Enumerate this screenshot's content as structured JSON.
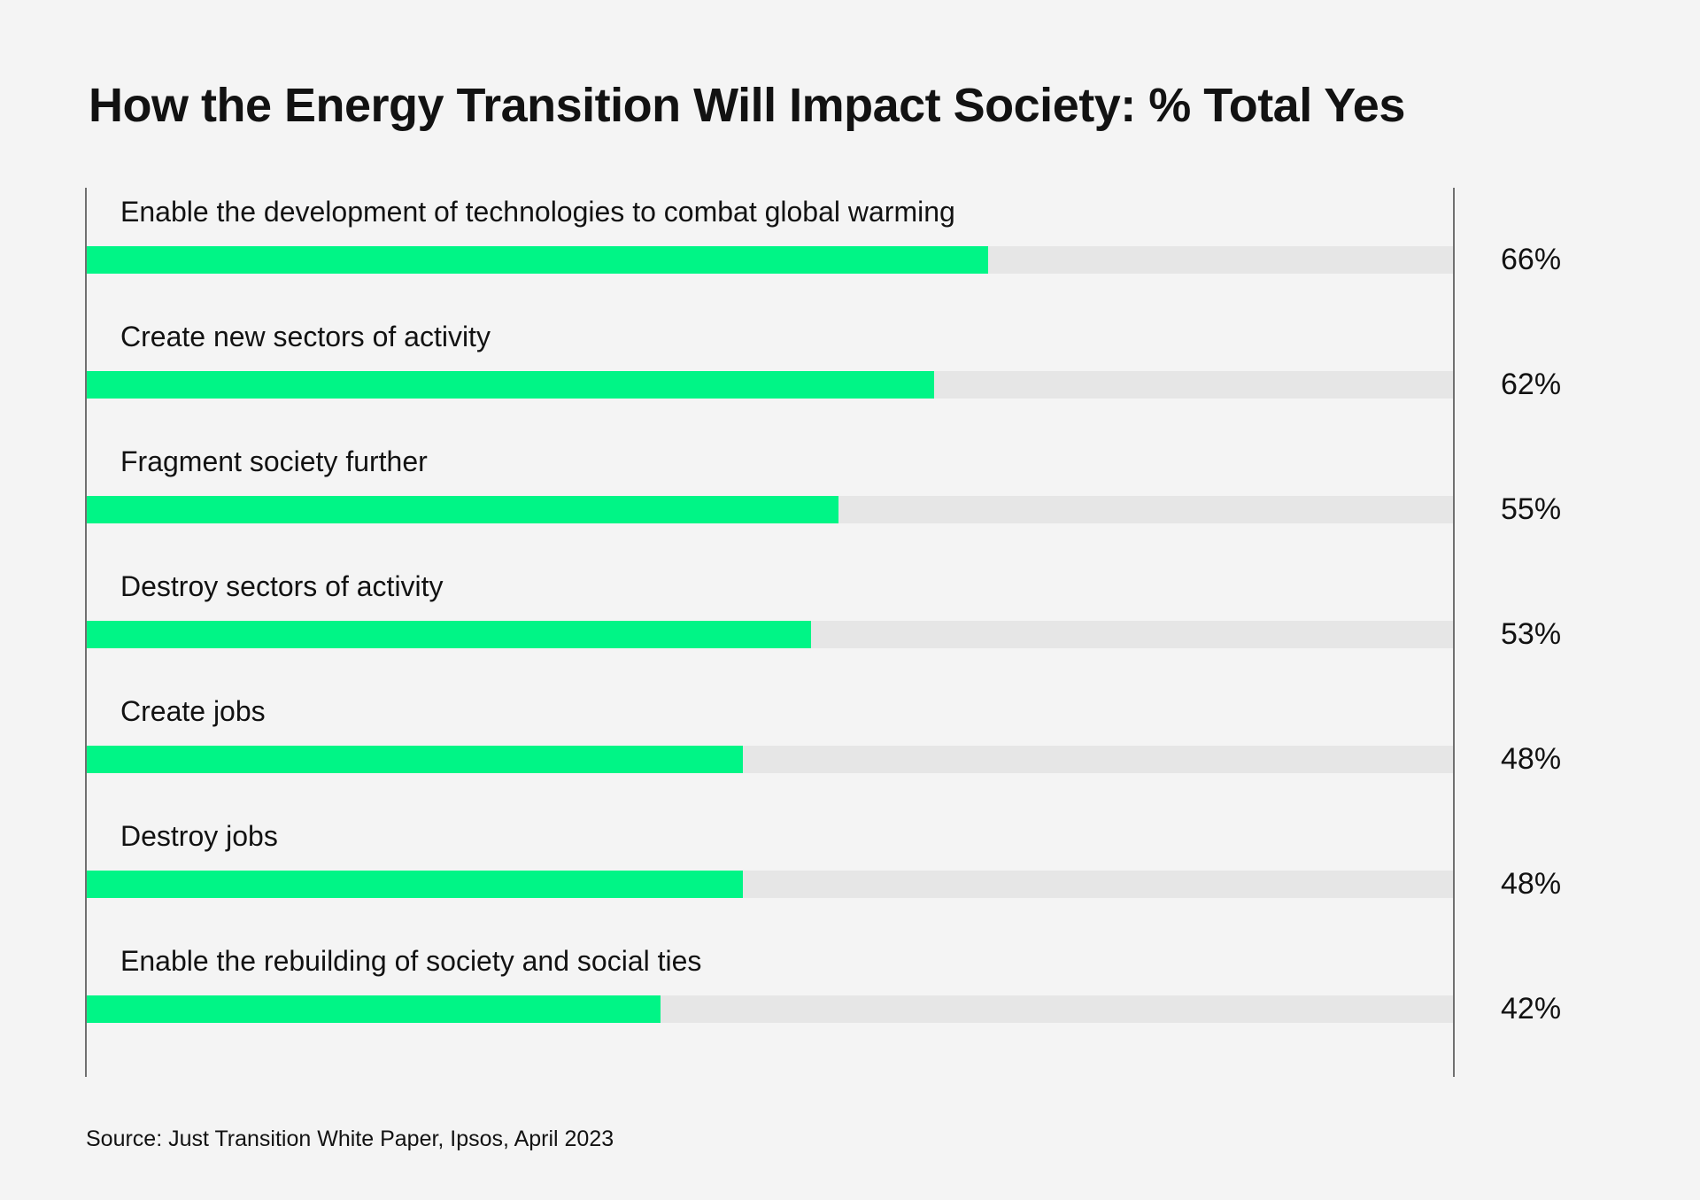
{
  "title": "How the Energy Transition Will Impact Society: % Total Yes",
  "source": "Source: Just Transition White Paper, Ipsos, April 2023",
  "colors": {
    "background": "#F4F4F4",
    "bar_fill": "#00F586",
    "bar_track": "#E6E6E6",
    "axis_line": "#707070",
    "text": "#121212"
  },
  "chart_data": {
    "type": "bar",
    "orientation": "horizontal",
    "title": "How the Energy Transition Will Impact Society: % Total Yes",
    "categories": [
      "Enable the development of technologies to combat global warming",
      "Create new sectors of activity",
      "Fragment society further",
      "Destroy sectors of activity",
      "Create jobs",
      "Destroy jobs",
      "Enable the rebuilding of society and social ties"
    ],
    "values": [
      66,
      62,
      55,
      53,
      48,
      48,
      42
    ],
    "value_labels": [
      "66%",
      "62%",
      "55%",
      "53%",
      "48%",
      "48%",
      "42%"
    ],
    "unit": "%",
    "xlim": [
      0,
      100
    ],
    "grid": false,
    "legend": false,
    "value_label_position": "right-outside",
    "bar_color": "#00F586",
    "track_color": "#E6E6E6",
    "source": "Source: Just Transition White Paper, Ipsos, April 2023"
  }
}
